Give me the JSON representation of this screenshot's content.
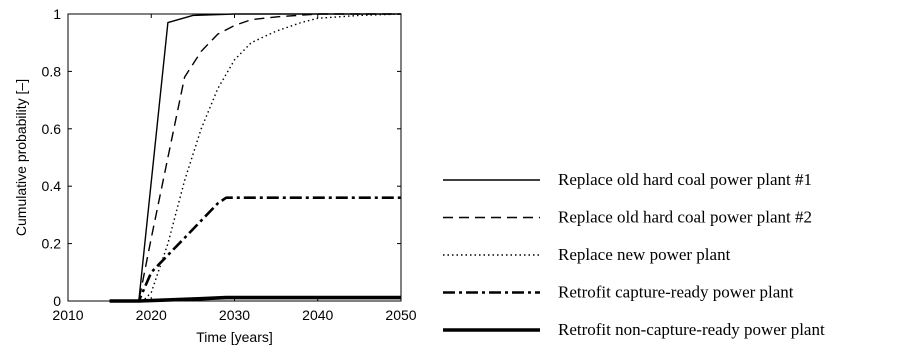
{
  "chart_data": {
    "type": "line",
    "title": "",
    "xlabel": "Time [years]",
    "ylabel": "Cumulative probability [–]",
    "xlim": [
      2010,
      2050
    ],
    "ylim": [
      0,
      1
    ],
    "xticks": [
      "2010",
      "2020",
      "2030",
      "2040",
      "2050"
    ],
    "yticks": [
      "0",
      "0.2",
      "0.4",
      "0.6",
      "0.8",
      "1"
    ],
    "grid": false,
    "legend_position": "right",
    "series": [
      {
        "name": "Replace old hard coal power plant #1",
        "style": "solid",
        "width": "thin",
        "x": [
          2015,
          2018.5,
          2022,
          2025,
          2030,
          2040,
          2050
        ],
        "y": [
          0,
          0,
          0.97,
          0.995,
          1,
          1,
          1
        ]
      },
      {
        "name": "Replace old hard coal power plant #2",
        "style": "dashed",
        "width": "thin",
        "x": [
          2015,
          2018.5,
          2020,
          2022,
          2024,
          2026,
          2028,
          2030,
          2032,
          2035,
          2040,
          2045,
          2050
        ],
        "y": [
          0,
          0,
          0.22,
          0.5,
          0.78,
          0.87,
          0.93,
          0.96,
          0.98,
          0.99,
          1,
          1,
          1
        ]
      },
      {
        "name": "Replace new power plant",
        "style": "dotted",
        "width": "thin",
        "x": [
          2015,
          2019,
          2020,
          2022,
          2024,
          2026,
          2028,
          2030,
          2032,
          2035,
          2038,
          2040,
          2045,
          2050
        ],
        "y": [
          0,
          0,
          0.03,
          0.2,
          0.42,
          0.6,
          0.74,
          0.84,
          0.9,
          0.94,
          0.97,
          0.985,
          0.995,
          1
        ]
      },
      {
        "name": "Retrofit capture-ready power plant",
        "style": "dashdot",
        "width": "thick",
        "x": [
          2015,
          2018.5,
          2020,
          2022,
          2024,
          2026,
          2028,
          2029,
          2035,
          2040,
          2050
        ],
        "y": [
          0,
          0,
          0.1,
          0.16,
          0.22,
          0.28,
          0.34,
          0.36,
          0.36,
          0.36,
          0.36
        ]
      },
      {
        "name": "Retrofit non-capture-ready power plant",
        "style": "solid",
        "width": "extra-thick",
        "x": [
          2015,
          2018.5,
          2022,
          2026,
          2029,
          2035,
          2050
        ],
        "y": [
          0,
          0,
          0.004,
          0.008,
          0.012,
          0.012,
          0.012
        ]
      }
    ]
  }
}
